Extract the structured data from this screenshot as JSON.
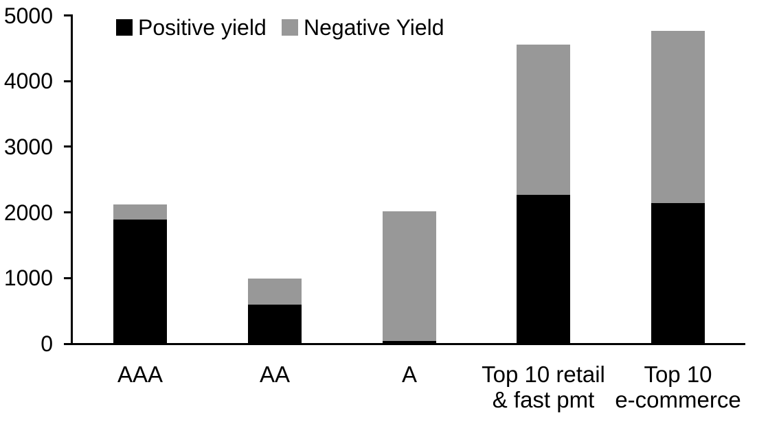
{
  "chart_data": {
    "type": "bar",
    "stacked": true,
    "title": "",
    "xlabel": "",
    "ylabel": "",
    "categories": [
      "AAA",
      "AA",
      "A",
      "Top 10 retail & fast pmt",
      "Top 10 e-commerce"
    ],
    "category_display": [
      "AAA",
      "AA",
      "A",
      "Top 10 retail\n& fast pmt",
      "Top 10\ne-commerce"
    ],
    "series": [
      {
        "name": "Positive yield",
        "color": "#000000",
        "values": [
          1890,
          600,
          40,
          2270,
          2140
        ]
      },
      {
        "name": "Negative Yield",
        "color": "#989898",
        "values": [
          230,
          390,
          1980,
          2290,
          2620
        ]
      }
    ],
    "ylim": [
      0,
      5000
    ],
    "yticks": [
      0,
      1000,
      2000,
      3000,
      4000,
      5000
    ],
    "ytick_labels": [
      "0",
      "1000",
      "2000",
      "3000",
      "4000",
      "5000"
    ],
    "grid": false,
    "legend_position": "top-inside",
    "axis_color": "#000000",
    "background_color": "#ffffff"
  }
}
